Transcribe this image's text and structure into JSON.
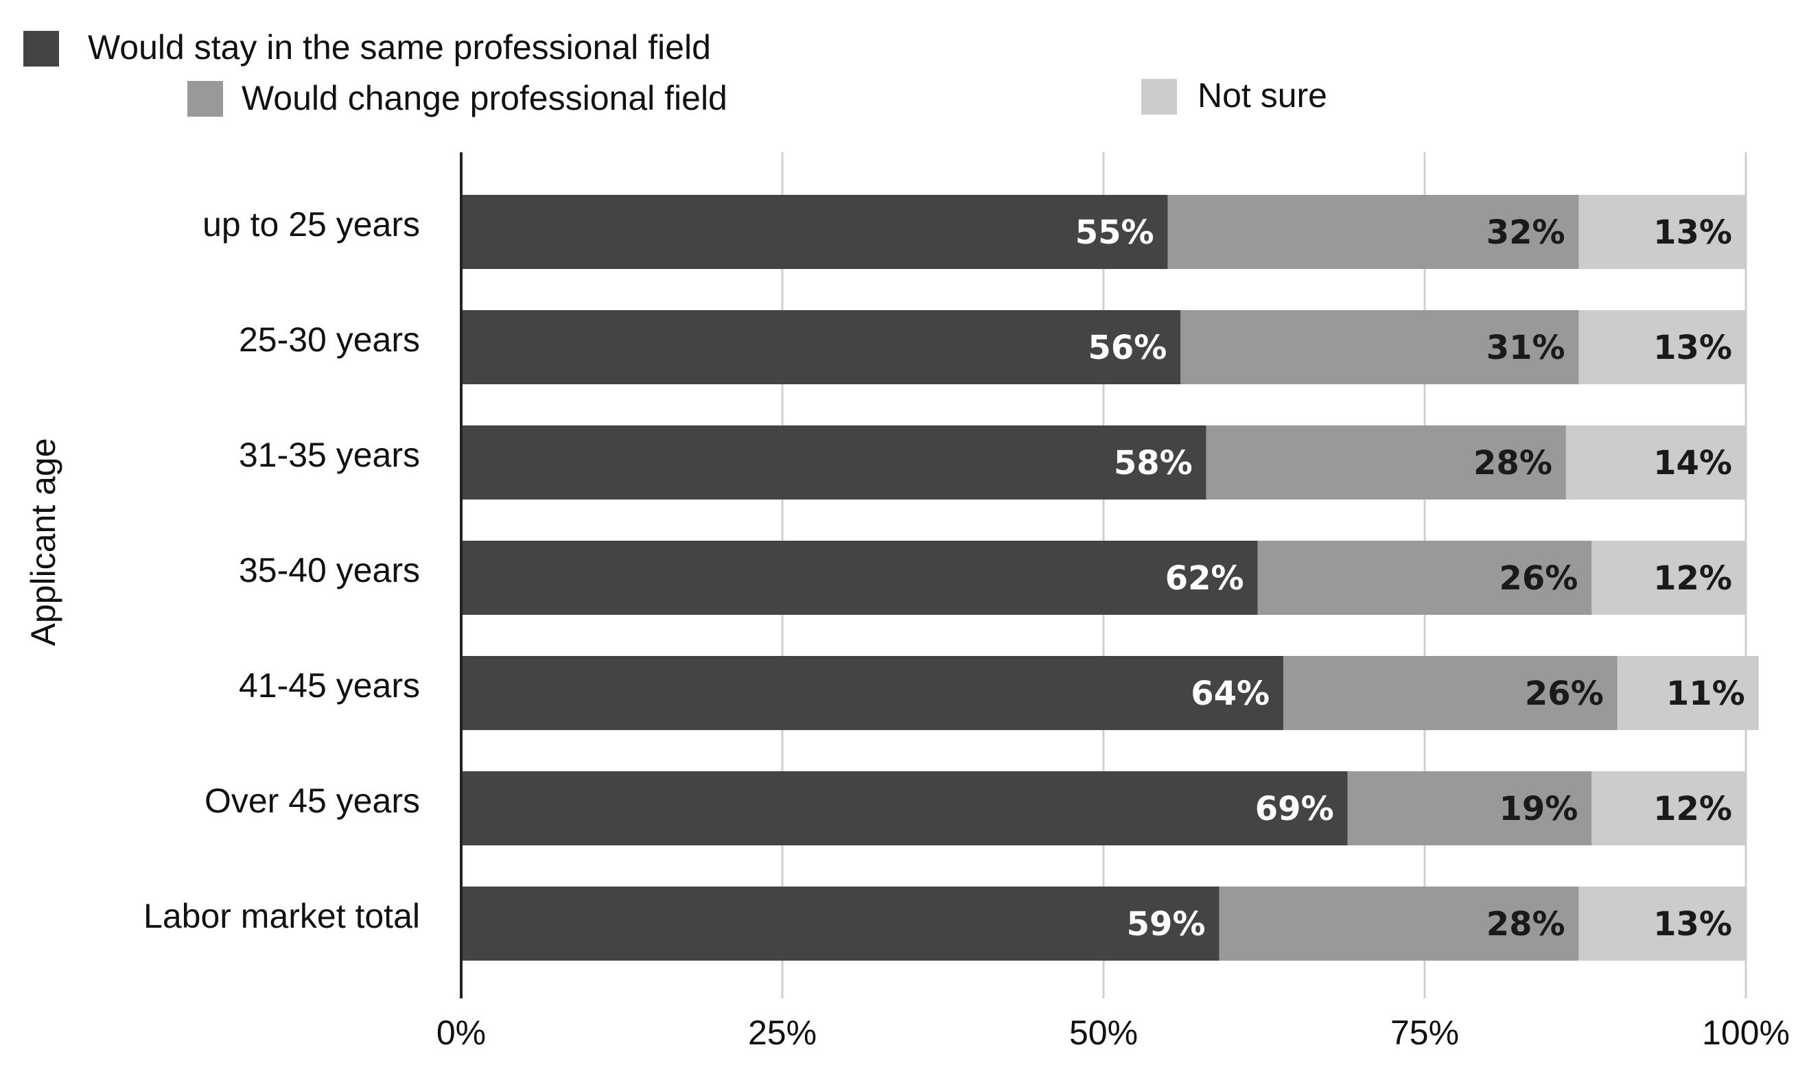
{
  "chart_data": {
    "type": "bar",
    "orientation": "horizontal",
    "stacked": true,
    "ylabel": "Applicant age",
    "xlabel": "",
    "xlim": [
      0,
      100
    ],
    "x_ticks": [
      "0%",
      "25%",
      "50%",
      "75%",
      "100%"
    ],
    "x_tick_values": [
      0,
      25,
      50,
      75,
      100
    ],
    "grid": true,
    "legend_position": "top",
    "categories": [
      "up to 25 years",
      "25-30 years",
      "31-35 years",
      "35-40 years",
      "41-45 years",
      "Over 45 years",
      "Labor market total"
    ],
    "series": [
      {
        "name": "Would stay in the same professional field",
        "color": "#444444",
        "label_color": "#ffffff",
        "values": [
          55,
          56,
          58,
          62,
          64,
          69,
          59
        ],
        "labels": [
          "55%",
          "56%",
          "58%",
          "62%",
          "64%",
          "69%",
          "59%"
        ]
      },
      {
        "name": "Would change professional field",
        "color": "#999999",
        "label_color": "#1a1a1a",
        "values": [
          32,
          31,
          28,
          26,
          26,
          19,
          28
        ],
        "labels": [
          "32%",
          "31%",
          "28%",
          "26%",
          "26%",
          "19%",
          "28%"
        ]
      },
      {
        "name": "Not sure",
        "color": "#cccccc",
        "label_color": "#1a1a1a",
        "values": [
          13,
          13,
          14,
          12,
          11,
          12,
          13
        ],
        "labels": [
          "13%",
          "13%",
          "14%",
          "12%",
          "11%",
          "12%",
          "13%"
        ]
      }
    ]
  }
}
